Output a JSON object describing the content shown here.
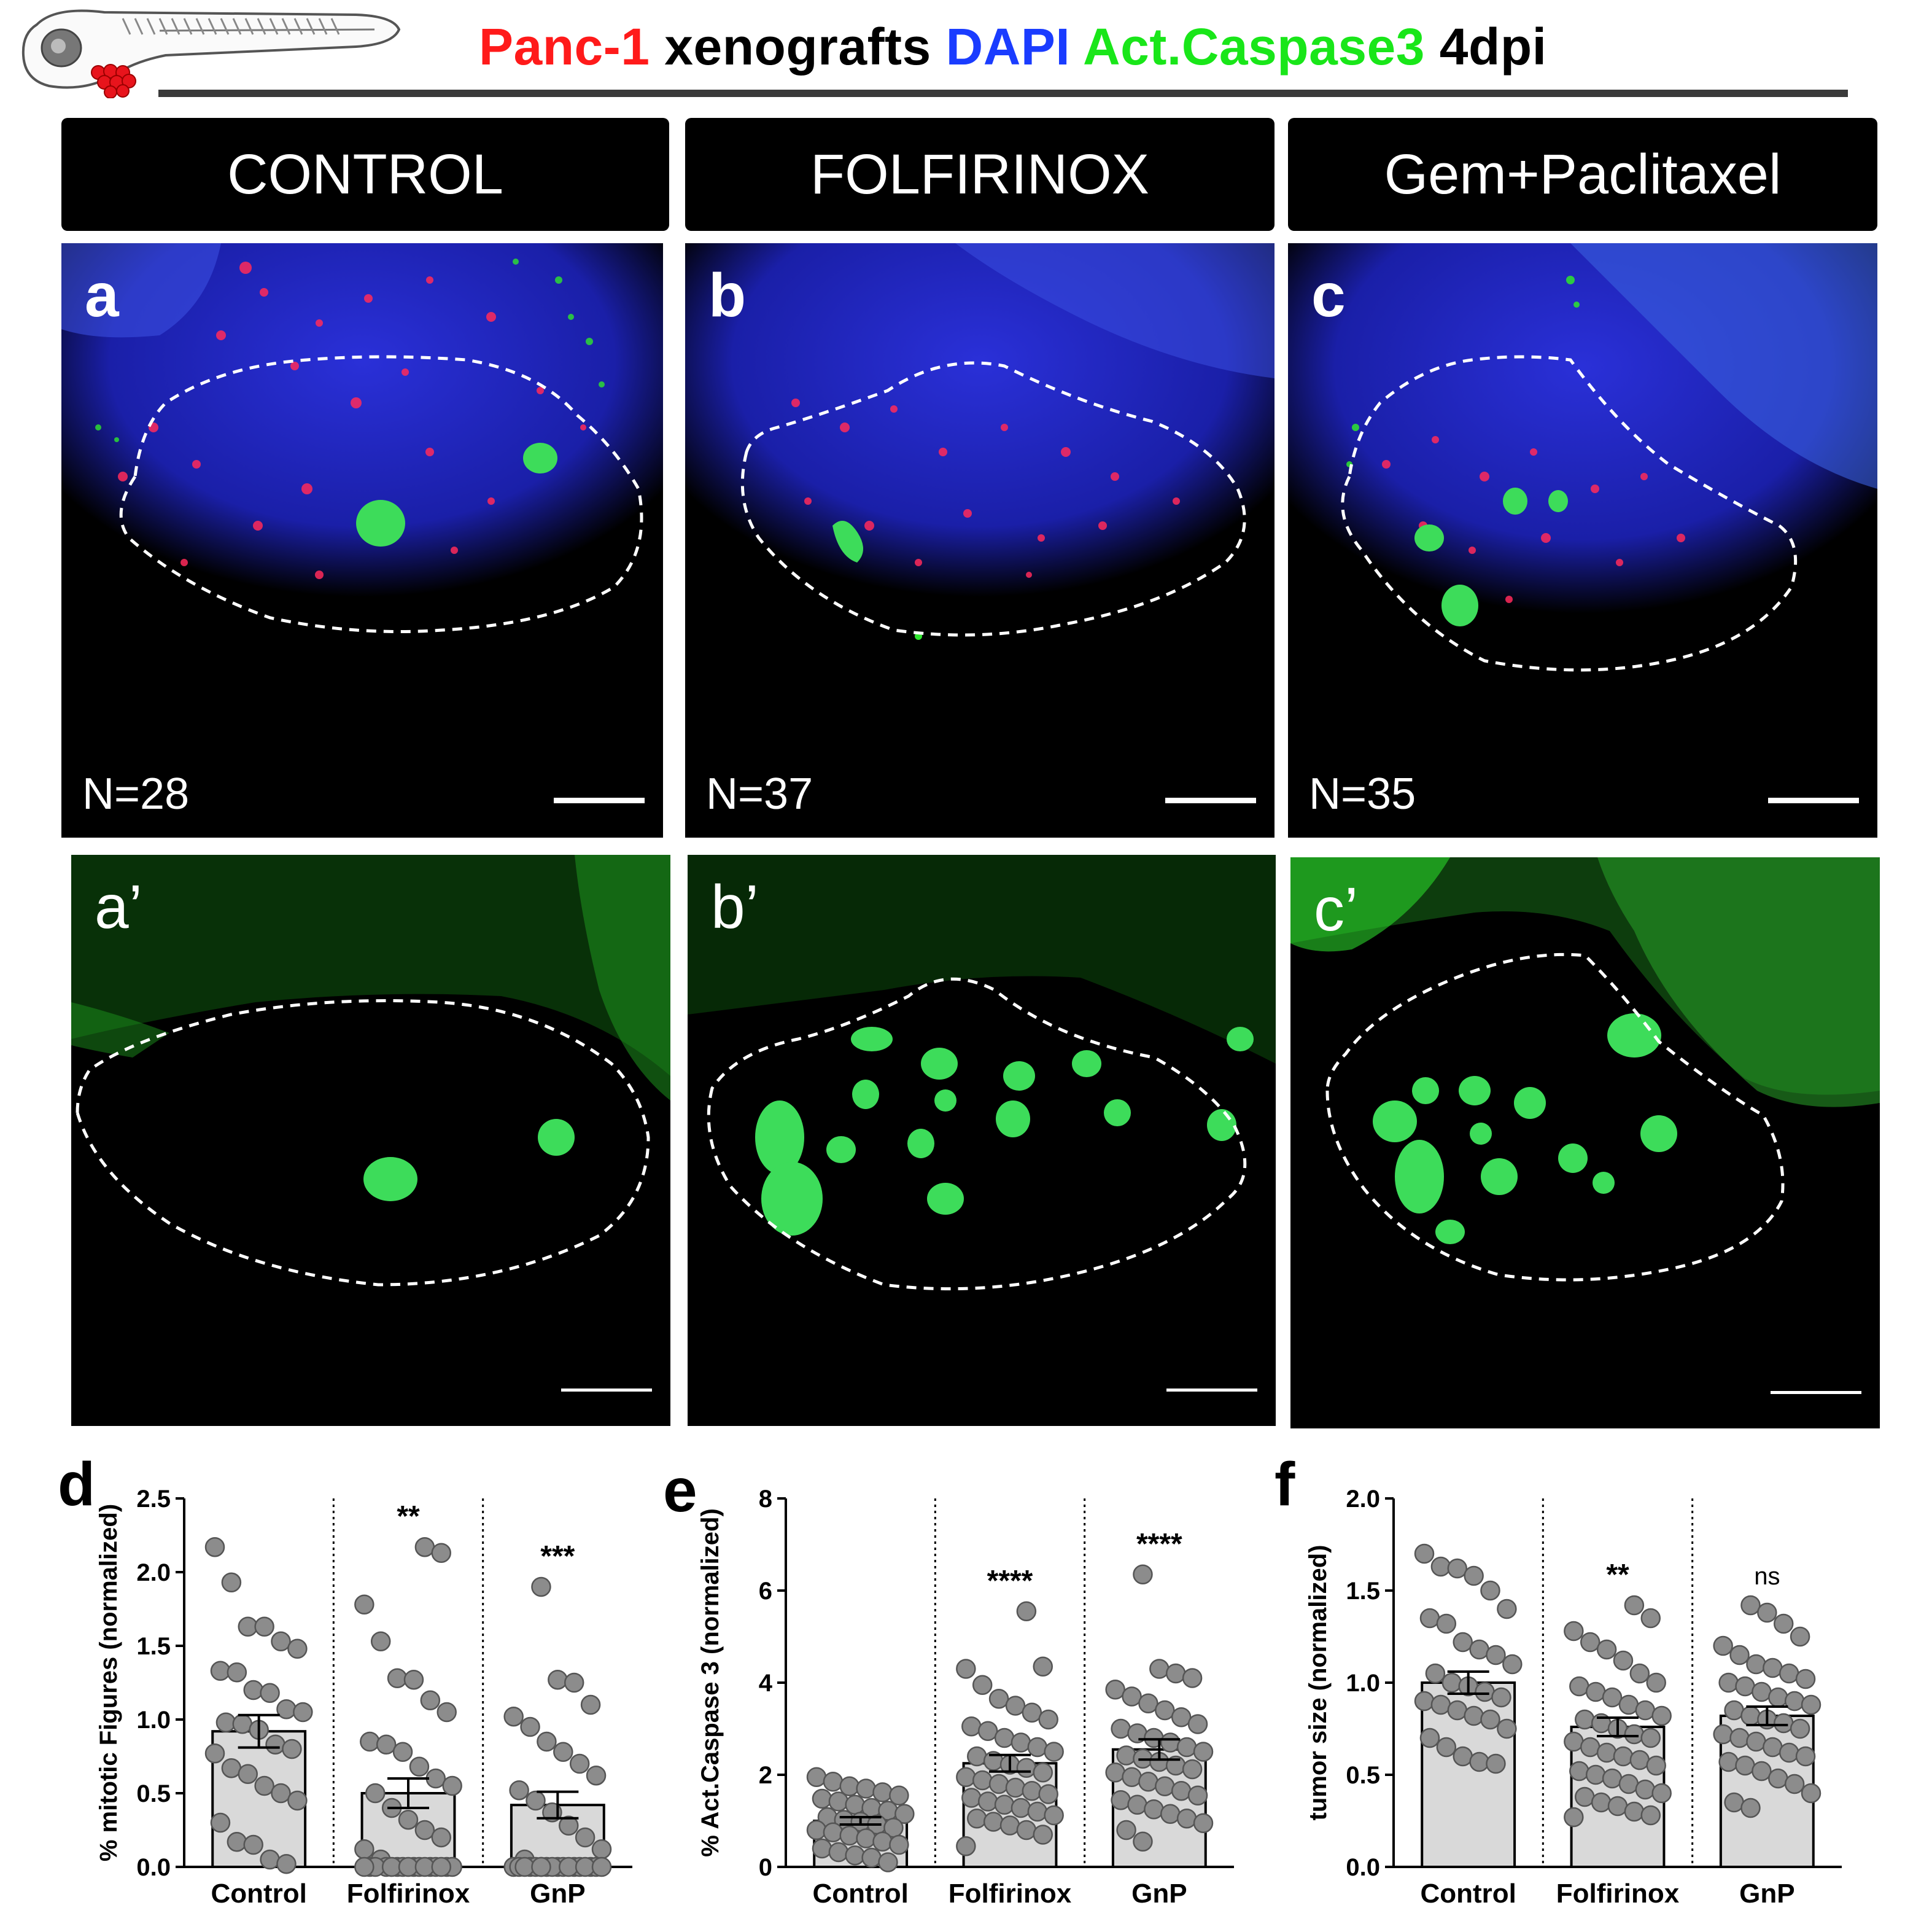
{
  "title": {
    "parts": [
      {
        "text": "Panc-1",
        "color": "#ff1a1a"
      },
      {
        "text": " xenografts ",
        "color": "#000000"
      },
      {
        "text": "DAPI",
        "color": "#1a3cff"
      },
      {
        "text": " Act.Caspase3",
        "color": "#19e619"
      },
      {
        "text": " 4dpi",
        "color": "#000000"
      }
    ]
  },
  "columns": [
    {
      "header": "CONTROL",
      "panel": "a",
      "panel_prime": "a’",
      "n": "N=28"
    },
    {
      "header": "FOLFIRINOX",
      "panel": "b",
      "panel_prime": "b’",
      "n": "N=37"
    },
    {
      "header": "Gem+Paclitaxel",
      "panel": "c",
      "panel_prime": "c’",
      "n": "N=35"
    }
  ],
  "colors": {
    "bar_fill": "#d9d9d9",
    "dot_fill": "#8c8c8c",
    "dot_stroke": "#555555",
    "merge_blue": "#1f28c8",
    "green": "#2ee62e"
  },
  "chart_data": [
    {
      "panel": "d",
      "type": "bar",
      "ylabel": "% mitotic Figures (normalized)",
      "categories": [
        "Control",
        "Folfirinox",
        "GnP"
      ],
      "ylim": [
        0,
        2.5
      ],
      "yticks": [
        "0.0",
        "0.5",
        "1.0",
        "1.5",
        "2.0",
        "2.5"
      ],
      "means": [
        0.92,
        0.5,
        0.42
      ],
      "sem": [
        0.11,
        0.1,
        0.09
      ],
      "significance": [
        "",
        "**",
        "***"
      ],
      "points": [
        [
          2.17,
          1.93,
          1.63,
          1.63,
          1.53,
          1.48,
          1.33,
          1.32,
          1.2,
          1.18,
          1.07,
          1.05,
          0.98,
          0.97,
          0.93,
          0.83,
          0.8,
          0.77,
          0.67,
          0.63,
          0.55,
          0.5,
          0.45,
          0.3,
          0.17,
          0.15,
          0.05,
          0.02
        ],
        [
          2.17,
          2.13,
          1.78,
          1.53,
          1.28,
          1.27,
          1.13,
          1.05,
          0.85,
          0.83,
          0.78,
          0.68,
          0.6,
          0.55,
          0.5,
          0.4,
          0.32,
          0.25,
          0.2,
          0.12,
          0.05,
          0.0,
          0.0,
          0.0,
          0.0,
          0.0,
          0.0,
          0.0,
          0.0,
          0.0,
          0.0,
          0.0,
          0.0,
          0.0,
          0.0,
          0.0,
          0.0
        ],
        [
          1.9,
          1.27,
          1.25,
          1.1,
          1.02,
          0.95,
          0.85,
          0.78,
          0.7,
          0.62,
          0.52,
          0.45,
          0.37,
          0.28,
          0.2,
          0.12,
          0.05,
          0.0,
          0.0,
          0.0,
          0.0,
          0.0,
          0.0,
          0.0,
          0.0,
          0.0,
          0.0,
          0.0,
          0.0,
          0.0,
          0.0,
          0.0,
          0.0,
          0.0,
          0.0
        ]
      ]
    },
    {
      "panel": "e",
      "type": "bar",
      "ylabel": "% Act.Caspase 3 (normalized)",
      "categories": [
        "Control",
        "Folfirinox",
        "GnP"
      ],
      "ylim": [
        0,
        8
      ],
      "yticks": [
        "0",
        "2",
        "4",
        "6",
        "8"
      ],
      "means": [
        1.0,
        2.25,
        2.55
      ],
      "sem": [
        0.08,
        0.18,
        0.22
      ],
      "significance": [
        "",
        "****",
        "****"
      ],
      "points": [
        [
          1.95,
          1.85,
          1.75,
          1.7,
          1.62,
          1.55,
          1.48,
          1.42,
          1.35,
          1.28,
          1.22,
          1.15,
          1.08,
          1.02,
          0.98,
          0.92,
          0.85,
          0.8,
          0.75,
          0.68,
          0.62,
          0.55,
          0.48,
          0.4,
          0.32,
          0.25,
          0.2,
          0.1
        ],
        [
          5.55,
          4.35,
          4.3,
          3.95,
          3.65,
          3.5,
          3.35,
          3.2,
          3.05,
          2.95,
          2.8,
          2.7,
          2.6,
          2.5,
          2.4,
          2.3,
          2.22,
          2.15,
          2.05,
          1.95,
          1.88,
          1.8,
          1.72,
          1.65,
          1.58,
          1.5,
          1.42,
          1.35,
          1.28,
          1.2,
          1.12,
          1.05,
          0.98,
          0.9,
          0.8,
          0.7,
          0.45
        ],
        [
          6.35,
          4.3,
          4.2,
          4.1,
          3.85,
          3.7,
          3.55,
          3.4,
          3.25,
          3.1,
          3.0,
          2.9,
          2.8,
          2.7,
          2.6,
          2.5,
          2.42,
          2.35,
          2.28,
          2.2,
          2.12,
          2.05,
          1.95,
          1.85,
          1.75,
          1.65,
          1.55,
          1.45,
          1.35,
          1.25,
          1.15,
          1.05,
          0.95,
          0.8,
          0.55
        ]
      ]
    },
    {
      "panel": "f",
      "type": "bar",
      "ylabel": "tumor size (normalized)",
      "categories": [
        "Control",
        "Folfirinox",
        "GnP"
      ],
      "ylim": [
        0,
        2.0
      ],
      "yticks": [
        "0.0",
        "0.5",
        "1.0",
        "1.5",
        "2.0"
      ],
      "means": [
        1.0,
        0.76,
        0.82
      ],
      "sem": [
        0.06,
        0.05,
        0.05
      ],
      "significance": [
        "",
        "**",
        "ns"
      ],
      "points": [
        [
          1.7,
          1.63,
          1.62,
          1.58,
          1.5,
          1.4,
          1.35,
          1.32,
          1.22,
          1.18,
          1.15,
          1.1,
          1.05,
          1.0,
          0.98,
          0.95,
          0.92,
          0.9,
          0.88,
          0.85,
          0.82,
          0.8,
          0.75,
          0.7,
          0.65,
          0.6,
          0.57,
          0.56
        ],
        [
          1.42,
          1.35,
          1.28,
          1.22,
          1.18,
          1.12,
          1.05,
          1.0,
          0.98,
          0.95,
          0.92,
          0.88,
          0.85,
          0.82,
          0.8,
          0.78,
          0.75,
          0.72,
          0.7,
          0.68,
          0.65,
          0.62,
          0.6,
          0.58,
          0.55,
          0.52,
          0.5,
          0.48,
          0.45,
          0.42,
          0.4,
          0.38,
          0.35,
          0.33,
          0.3,
          0.28,
          0.27
        ],
        [
          1.42,
          1.38,
          1.32,
          1.25,
          1.2,
          1.15,
          1.1,
          1.08,
          1.05,
          1.02,
          1.0,
          0.98,
          0.95,
          0.92,
          0.9,
          0.88,
          0.85,
          0.82,
          0.8,
          0.78,
          0.75,
          0.72,
          0.7,
          0.68,
          0.65,
          0.62,
          0.6,
          0.57,
          0.55,
          0.52,
          0.48,
          0.45,
          0.4,
          0.35,
          0.32
        ]
      ]
    }
  ]
}
